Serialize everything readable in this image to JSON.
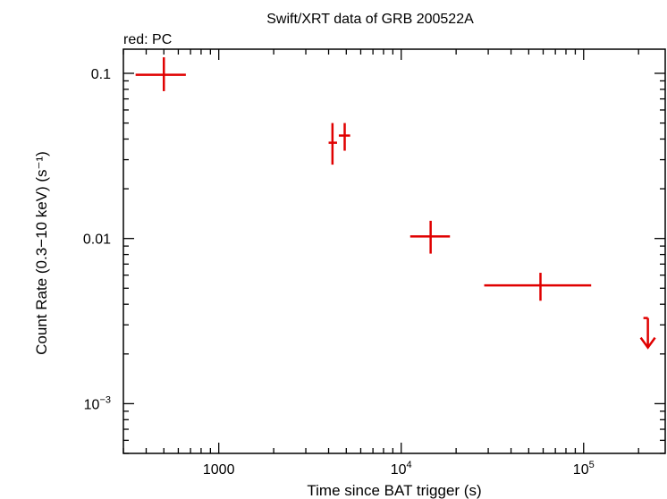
{
  "chart_data": {
    "type": "scatter",
    "title": "Swift/XRT data of GRB 200522A",
    "subtitle": "red: PC",
    "xlabel": "Time since BAT trigger (s)",
    "ylabel": "Count Rate (0.3−10 keV) (s⁻¹)",
    "xscale": "log",
    "yscale": "log",
    "xlim": [
      300,
      280000
    ],
    "ylim": [
      0.0005,
      0.14
    ],
    "x_ticks": [
      {
        "value": 1000,
        "base": "1000",
        "exp": ""
      },
      {
        "value": 10000,
        "base": "10",
        "exp": "4"
      },
      {
        "value": 100000,
        "base": "10",
        "exp": "5"
      }
    ],
    "y_ticks": [
      {
        "value": 0.1,
        "base": "0.1",
        "exp": ""
      },
      {
        "value": 0.01,
        "base": "0.01",
        "exp": ""
      },
      {
        "value": 0.001,
        "base": "10",
        "exp": "−3"
      }
    ],
    "series": [
      {
        "color": "#e00000",
        "points": [
          {
            "x": 500,
            "xlo": 350,
            "xhi": 660,
            "y": 0.098,
            "ylo": 0.078,
            "yhi": 0.125
          },
          {
            "x": 4200,
            "xlo": 4000,
            "xhi": 4450,
            "y": 0.038,
            "ylo": 0.028,
            "yhi": 0.05
          },
          {
            "x": 4900,
            "xlo": 4550,
            "xhi": 5250,
            "y": 0.042,
            "ylo": 0.034,
            "yhi": 0.05
          },
          {
            "x": 14500,
            "xlo": 11200,
            "xhi": 18500,
            "y": 0.0103,
            "ylo": 0.0081,
            "yhi": 0.0128
          },
          {
            "x": 58000,
            "xlo": 28500,
            "xhi": 110000,
            "y": 0.0052,
            "ylo": 0.0042,
            "yhi": 0.0062
          }
        ],
        "upper_limits": [
          {
            "x": 225000,
            "y": 0.0033
          }
        ]
      }
    ],
    "grid": false,
    "legend": "none"
  }
}
